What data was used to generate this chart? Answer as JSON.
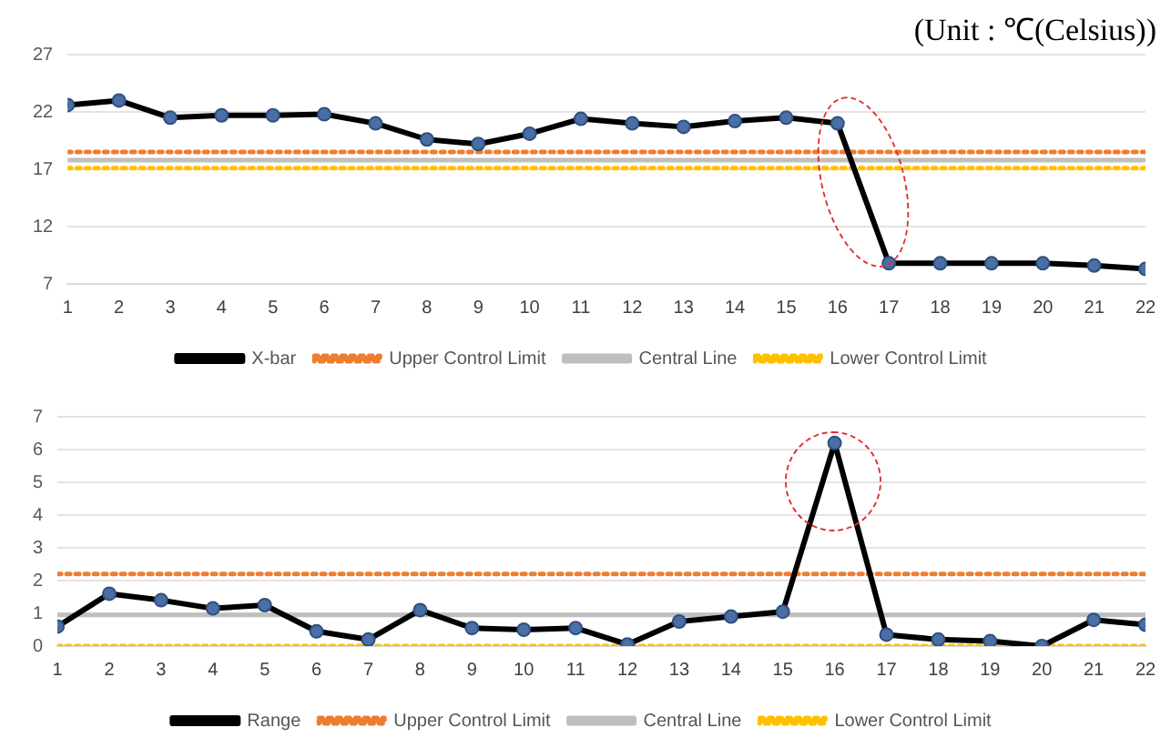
{
  "chart_data": [
    {
      "type": "line",
      "annotations": [
        "(Unit : ℃(Celsius))"
      ],
      "x": [
        1,
        2,
        3,
        4,
        5,
        6,
        7,
        8,
        9,
        10,
        11,
        12,
        13,
        14,
        15,
        16,
        17,
        18,
        19,
        20,
        21,
        22
      ],
      "xlim": [
        1,
        22
      ],
      "xticks": [
        1,
        2,
        3,
        4,
        5,
        6,
        7,
        8,
        9,
        10,
        11,
        12,
        13,
        14,
        15,
        16,
        17,
        18,
        19,
        20,
        21,
        22
      ],
      "series": [
        {
          "name": "X-bar",
          "color": "#000000",
          "marker": "circle",
          "line_style": "solid",
          "values": [
            22.6,
            23.0,
            21.5,
            21.7,
            21.7,
            21.8,
            21.0,
            19.6,
            19.2,
            20.1,
            21.4,
            21.0,
            20.7,
            21.2,
            21.5,
            21.0,
            8.8,
            8.8,
            8.8,
            8.8,
            8.6,
            8.3
          ]
        },
        {
          "name": "Upper Control Limit",
          "color": "#ed7d31",
          "marker": "none",
          "line_style": "dotted",
          "values": [
            18.5,
            18.5,
            18.5,
            18.5,
            18.5,
            18.5,
            18.5,
            18.5,
            18.5,
            18.5,
            18.5,
            18.5,
            18.5,
            18.5,
            18.5,
            18.5,
            18.5,
            18.5,
            18.5,
            18.5,
            18.5,
            18.5
          ]
        },
        {
          "name": "Central Line",
          "color": "#bfbfbf",
          "marker": "none",
          "line_style": "solid",
          "values": [
            17.8,
            17.8,
            17.8,
            17.8,
            17.8,
            17.8,
            17.8,
            17.8,
            17.8,
            17.8,
            17.8,
            17.8,
            17.8,
            17.8,
            17.8,
            17.8,
            17.8,
            17.8,
            17.8,
            17.8,
            17.8,
            17.8
          ]
        },
        {
          "name": "Lower Control Limit",
          "color": "#ffc000",
          "marker": "none",
          "line_style": "dotted",
          "values": [
            17.1,
            17.1,
            17.1,
            17.1,
            17.1,
            17.1,
            17.1,
            17.1,
            17.1,
            17.1,
            17.1,
            17.1,
            17.1,
            17.1,
            17.1,
            17.1,
            17.1,
            17.1,
            17.1,
            17.1,
            17.1,
            17.1
          ]
        }
      ],
      "ylim": [
        7,
        27
      ],
      "yticks": [
        7,
        12,
        17,
        22,
        27
      ],
      "grid": "y",
      "legend": "bottom"
    },
    {
      "type": "line",
      "x": [
        1,
        2,
        3,
        4,
        5,
        6,
        7,
        8,
        9,
        10,
        11,
        12,
        13,
        14,
        15,
        16,
        17,
        18,
        19,
        20,
        21,
        22
      ],
      "xlim": [
        1,
        22
      ],
      "xticks": [
        1,
        2,
        3,
        4,
        5,
        6,
        7,
        8,
        9,
        10,
        11,
        12,
        13,
        14,
        15,
        16,
        17,
        18,
        19,
        20,
        21,
        22
      ],
      "series": [
        {
          "name": "Range",
          "color": "#000000",
          "marker": "circle",
          "line_style": "solid",
          "values": [
            0.6,
            1.6,
            1.4,
            1.15,
            1.25,
            0.45,
            0.2,
            1.1,
            0.55,
            0.5,
            0.55,
            0.05,
            0.75,
            0.9,
            1.05,
            6.2,
            0.35,
            0.2,
            0.15,
            0.0,
            0.8,
            0.65
          ]
        },
        {
          "name": "Upper Control Limit",
          "color": "#ed7d31",
          "marker": "none",
          "line_style": "dotted",
          "values": [
            2.2,
            2.2,
            2.2,
            2.2,
            2.2,
            2.2,
            2.2,
            2.2,
            2.2,
            2.2,
            2.2,
            2.2,
            2.2,
            2.2,
            2.2,
            2.2,
            2.2,
            2.2,
            2.2,
            2.2,
            2.2,
            2.2
          ]
        },
        {
          "name": "Central Line",
          "color": "#bfbfbf",
          "marker": "none",
          "line_style": "solid",
          "values": [
            0.95,
            0.95,
            0.95,
            0.95,
            0.95,
            0.95,
            0.95,
            0.95,
            0.95,
            0.95,
            0.95,
            0.95,
            0.95,
            0.95,
            0.95,
            0.95,
            0.95,
            0.95,
            0.95,
            0.95,
            0.95,
            0.95
          ]
        },
        {
          "name": "Lower Control Limit",
          "color": "#ffc000",
          "marker": "none",
          "line_style": "dotted",
          "values": [
            0,
            0,
            0,
            0,
            0,
            0,
            0,
            0,
            0,
            0,
            0,
            0,
            0,
            0,
            0,
            0,
            0,
            0,
            0,
            0,
            0,
            0
          ]
        }
      ],
      "ylim": [
        0,
        7
      ],
      "yticks": [
        0,
        1,
        2,
        3,
        4,
        5,
        6,
        7
      ],
      "grid": "y",
      "legend": "bottom"
    }
  ]
}
